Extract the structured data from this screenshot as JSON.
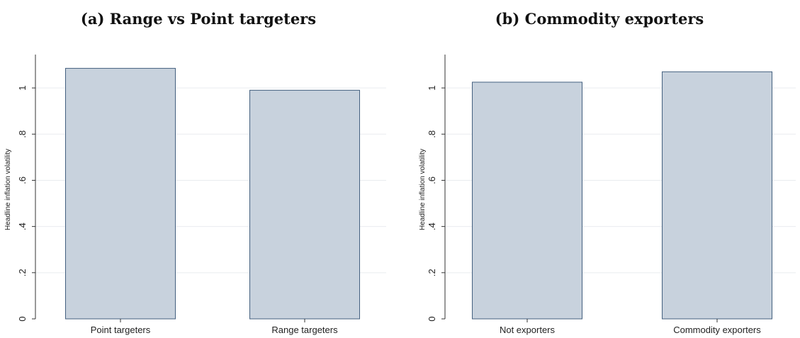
{
  "figure": {
    "panel_a_title": "(a) Range vs Point targeters",
    "panel_b_title": "(b) Commodity exporters"
  },
  "colors": {
    "bar_fill": "#c8d2dd",
    "bar_stroke": "#44607f",
    "grid": "#e9ecef",
    "axis": "#333333"
  },
  "chart_data": [
    {
      "type": "bar",
      "title": "(a) Range vs Point targeters",
      "categories": [
        "Point targeters",
        "Range targeters"
      ],
      "values": [
        1.085,
        0.99
      ],
      "xlabel": "",
      "ylabel": "Headline inflation volatility",
      "ylim": [
        0,
        1.12
      ],
      "yticks": [
        0,
        0.2,
        0.4,
        0.6,
        0.8,
        1
      ],
      "ytick_labels": [
        "0",
        ".2",
        ".4",
        ".6",
        ".8",
        "1"
      ],
      "grid": true
    },
    {
      "type": "bar",
      "title": "(b) Commodity exporters",
      "categories": [
        "Not exporters",
        "Commodity exporters"
      ],
      "values": [
        1.025,
        1.07
      ],
      "xlabel": "",
      "ylabel": "Headline inflation volatility",
      "ylim": [
        0,
        1.12
      ],
      "yticks": [
        0,
        0.2,
        0.4,
        0.6,
        0.8,
        1
      ],
      "ytick_labels": [
        "0",
        ".2",
        ".4",
        ".6",
        ".8",
        "1"
      ],
      "grid": true
    }
  ]
}
